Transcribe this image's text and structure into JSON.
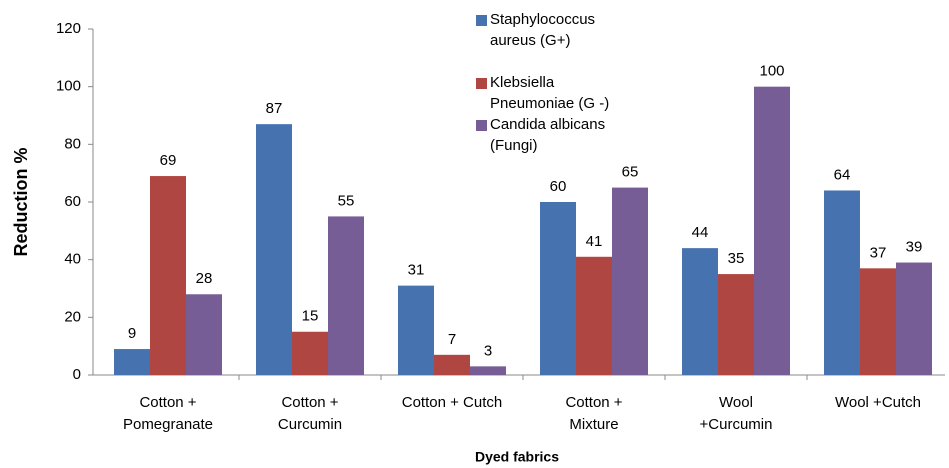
{
  "chart_data": {
    "type": "bar",
    "x_label": "Dyed fabrics",
    "y_label": "Reduction %",
    "categories": [
      [
        "Cotton +",
        "Pomegranate"
      ],
      [
        "Cotton +",
        "Curcumin"
      ],
      [
        "Cotton + Cutch"
      ],
      [
        "Cotton +",
        "Mixture"
      ],
      [
        "Wool",
        "+Curcumin"
      ],
      [
        "Wool +Cutch"
      ]
    ],
    "series": [
      {
        "name": "Staphylococcus aureus (G+)",
        "color": "#4672b0",
        "values": [
          9,
          87,
          31,
          60,
          44,
          64
        ]
      },
      {
        "name": "Klebsiella Pneumoniae (G -)",
        "color": "#b04642",
        "values": [
          69,
          15,
          7,
          41,
          35,
          37
        ]
      },
      {
        "name": "Candida albicans (Fungi)",
        "color": "#775d95",
        "values": [
          28,
          55,
          3,
          65,
          100,
          39
        ]
      }
    ],
    "ylim": [
      0,
      120
    ],
    "yticks": [
      0,
      20,
      40,
      60,
      80,
      100,
      120
    ],
    "grid": false,
    "legend": "top"
  }
}
